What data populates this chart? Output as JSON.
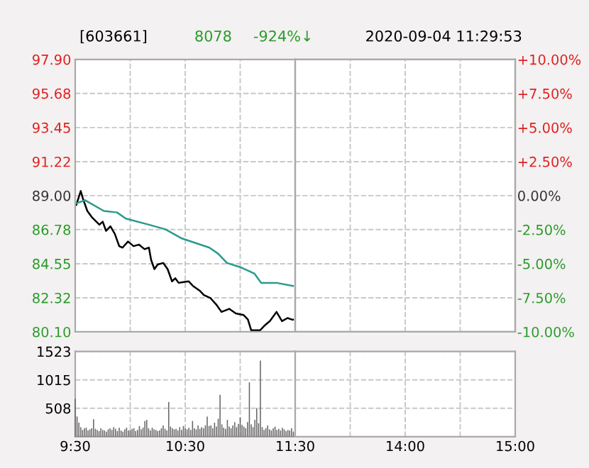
{
  "chart_data": [
    {
      "type": "line",
      "title": "[603661]",
      "annotations": [
        "8078",
        "-924%↓",
        "2020-09-04 11:29:53"
      ],
      "xlim": [
        9.5,
        11.5
      ],
      "xticks": [
        {
          "value": 9.5,
          "label": null
        },
        {
          "value": 10,
          "label": null
        },
        {
          "value": 10.5,
          "label": null
        },
        {
          "value": 11,
          "label": null
        },
        {
          "value": 11.5,
          "label": null
        }
      ],
      "ylim": [
        80.1,
        97.9
      ],
      "yticks": [
        {
          "value": 80.1,
          "label": "80.10"
        },
        82.32,
        84.55,
        86.78,
        {
          "value": 89.0,
          "label": "89.00"
        },
        91.22,
        93.45,
        95.68,
        {
          "value": 97.9,
          "label": "97.90"
        }
      ],
      "grid": true,
      "tick_labels": "y",
      "line_style": "solid",
      "series": [
        {
          "color": "#000000",
          "x": [
            9.51,
            9.55,
            9.57,
            9.61,
            9.65,
            9.72,
            9.75,
            9.78,
            9.82,
            9.86,
            9.9,
            9.93,
            9.98,
            10.03,
            10.08,
            10.13,
            10.17,
            10.19,
            10.22,
            10.25,
            10.3,
            10.34,
            10.38,
            10.41,
            10.44,
            10.53,
            10.57,
            10.63,
            10.67,
            10.73,
            10.78,
            10.83,
            10.9,
            10.96,
            11.03,
            11.07,
            11.1,
            11.18,
            11.22,
            11.27,
            11.33,
            11.38,
            11.43,
            11.47,
            11.48
          ],
          "values": [
            88.4,
            89.3,
            88.8,
            88.0,
            87.6,
            87.1,
            87.3,
            86.7,
            87.0,
            86.5,
            85.7,
            85.6,
            86.0,
            85.7,
            85.8,
            85.5,
            85.6,
            84.8,
            84.2,
            84.5,
            84.6,
            84.2,
            83.4,
            83.6,
            83.3,
            83.4,
            83.1,
            82.8,
            82.5,
            82.3,
            81.9,
            81.4,
            81.6,
            81.3,
            81.2,
            80.9,
            80.2,
            80.2,
            80.5,
            80.8,
            81.4,
            80.8,
            81.0,
            80.9,
            80.9
          ]
        },
        {
          "color": "#2a9a8c",
          "x": [
            9.51,
            9.59,
            9.76,
            9.88,
            9.96,
            10.17,
            10.32,
            10.47,
            10.72,
            10.8,
            10.88,
            11.01,
            11.13,
            11.19,
            11.33,
            11.48
          ],
          "values": [
            88.5,
            88.7,
            88.0,
            87.9,
            87.5,
            87.1,
            86.8,
            86.2,
            85.6,
            85.2,
            84.6,
            84.3,
            83.9,
            83.3,
            83.3,
            83.1
          ]
        }
      ]
    },
    {
      "type": "line",
      "xlim": [
        13,
        15
      ],
      "xticks": [
        {
          "value": 13,
          "label": null
        },
        {
          "value": 13.5,
          "label": null
        },
        {
          "value": 14,
          "label": null
        },
        {
          "value": 14.5,
          "label": null
        },
        {
          "value": 15,
          "label": null
        }
      ],
      "ylim": [
        80.1,
        97.9
      ],
      "yticks": [
        {
          "value": 80.1,
          "label": null
        },
        {
          "value": 82.32,
          "label": null
        },
        {
          "value": 84.55,
          "label": null
        },
        {
          "value": 86.78,
          "label": null
        },
        {
          "value": 89.0,
          "label": null
        },
        {
          "value": 91.22,
          "label": null
        },
        {
          "value": 93.45,
          "label": null
        },
        {
          "value": 95.68,
          "label": null
        },
        {
          "value": 97.9,
          "label": null
        }
      ],
      "y2lim": [
        -10,
        10
      ],
      "y2ticks": [
        {
          "value": -10,
          "label": "-10.00%"
        },
        {
          "value": -7.5,
          "label": "-7.50%"
        },
        {
          "value": -5,
          "label": "-5.00%"
        },
        {
          "value": -2.5,
          "label": "-2.50%"
        },
        {
          "value": 0,
          "label": "0.00%"
        },
        {
          "value": 2.5,
          "label": "+2.50%"
        },
        {
          "value": 5,
          "label": "+5.00%"
        },
        {
          "value": 7.5,
          "label": "+7.50%"
        },
        {
          "value": 10,
          "label": "+10.00%"
        }
      ],
      "grid": true,
      "tick_labels": false
    },
    {
      "type": "bar",
      "xlim": [
        9.5,
        11.5
      ],
      "xticks": [
        {
          "value": 9.5,
          "label": "9:30"
        },
        {
          "value": 10,
          "label": null
        },
        {
          "value": 10.5,
          "label": "10:30"
        },
        {
          "value": 11,
          "label": null
        },
        {
          "value": 11.5,
          "label": "11:30"
        }
      ],
      "ylim": [
        0,
        1523
      ],
      "yticks": [
        508,
        1015,
        1523
      ],
      "grid": true,
      "color": "#666666",
      "x": [
        9.5,
        9.5167,
        9.5333,
        9.55,
        9.5667,
        9.5833,
        9.6,
        9.6167,
        9.6333,
        9.65,
        9.6667,
        9.6833,
        9.7,
        9.7167,
        9.7333,
        9.75,
        9.7667,
        9.7833,
        9.8,
        9.8167,
        9.8333,
        9.85,
        9.8667,
        9.8833,
        9.9,
        9.9167,
        9.9333,
        9.95,
        9.9667,
        9.9833,
        10.0,
        10.0167,
        10.0333,
        10.05,
        10.0667,
        10.0833,
        10.1,
        10.1167,
        10.1333,
        10.15,
        10.1667,
        10.1833,
        10.2,
        10.2167,
        10.2333,
        10.25,
        10.2667,
        10.2833,
        10.3,
        10.3167,
        10.3333,
        10.35,
        10.3667,
        10.3833,
        10.4,
        10.4167,
        10.4333,
        10.45,
        10.4667,
        10.4833,
        10.5,
        10.5167,
        10.5333,
        10.55,
        10.5667,
        10.5833,
        10.6,
        10.6167,
        10.6333,
        10.65,
        10.6667,
        10.6833,
        10.7,
        10.7167,
        10.7333,
        10.75,
        10.7667,
        10.7833,
        10.8,
        10.8167,
        10.8333,
        10.85,
        10.8667,
        10.8833,
        10.9,
        10.9167,
        10.9333,
        10.95,
        10.9667,
        10.9833,
        11.0,
        11.0167,
        11.0333,
        11.05,
        11.0667,
        11.0833,
        11.1,
        11.1167,
        11.1333,
        11.15,
        11.1667,
        11.1833,
        11.2,
        11.2167,
        11.2333,
        11.25,
        11.2667,
        11.2833,
        11.3,
        11.3167,
        11.3333,
        11.35,
        11.3667,
        11.3833,
        11.4,
        11.4167,
        11.4333,
        11.45,
        11.4667,
        11.4833
      ],
      "values": [
        680,
        360,
        250,
        170,
        120,
        150,
        160,
        110,
        130,
        150,
        310,
        140,
        120,
        100,
        150,
        120,
        110,
        90,
        130,
        150,
        120,
        170,
        140,
        100,
        160,
        110,
        90,
        130,
        160,
        110,
        120,
        140,
        150,
        100,
        120,
        190,
        130,
        160,
        280,
        300,
        150,
        110,
        160,
        130,
        120,
        100,
        110,
        150,
        200,
        140,
        110,
        620,
        180,
        150,
        130,
        140,
        110,
        170,
        120,
        190,
        150,
        130,
        160,
        120,
        280,
        150,
        130,
        200,
        140,
        170,
        150,
        200,
        360,
        190,
        200,
        150,
        250,
        180,
        320,
        750,
        220,
        160,
        140,
        300,
        180,
        150,
        200,
        260,
        170,
        230,
        340,
        210,
        180,
        150,
        260,
        970,
        220,
        170,
        300,
        510,
        240,
        1360,
        170,
        120,
        150,
        200,
        130,
        110,
        150,
        180,
        120,
        140,
        110,
        160,
        130,
        100,
        120,
        110,
        150,
        90
      ]
    },
    {
      "type": "bar",
      "xlim": [
        13,
        15
      ],
      "xticks": [
        {
          "value": 13,
          "label": null
        },
        {
          "value": 13.5,
          "label": null
        },
        {
          "value": 14,
          "label": "14:00"
        },
        {
          "value": 14.5,
          "label": null
        },
        {
          "value": 15,
          "label": "15:00"
        }
      ],
      "ylim": [
        0,
        1523
      ],
      "yticks": [
        {
          "value": 508,
          "label": null
        },
        {
          "value": 1015,
          "label": null
        },
        {
          "value": 1523,
          "label": null
        }
      ],
      "tick_labels": "x",
      "grid": true,
      "color": "#666666"
    }
  ]
}
